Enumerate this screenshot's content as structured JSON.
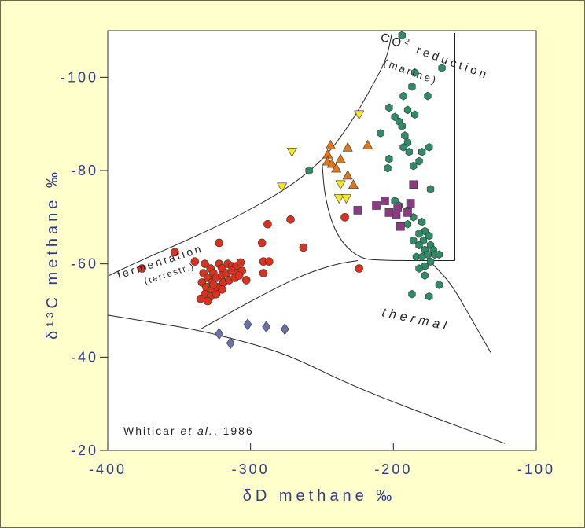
{
  "chart_data": {
    "type": "scatter",
    "title": "",
    "xlabel": "δD  methane ‰",
    "ylabel": "δ¹³C  methane ‰",
    "xlim": [
      -400,
      -100
    ],
    "ylim": [
      -110,
      -20
    ],
    "x_ticks": [
      "-400",
      "-300",
      "-200",
      "-100"
    ],
    "y_ticks": [
      "-100",
      "-80",
      "-60",
      "-40",
      "-20"
    ],
    "citation": {
      "author": "Whiticar ",
      "etal": "et al.",
      "year": ", 1986"
    },
    "region_labels": {
      "co2": "CO",
      "co2_sub": "2",
      "reduction": " reduction",
      "marine": "(marine)",
      "fermentation": "fermentation",
      "terrestr": "(terrestr.)",
      "thermal": "thermal"
    },
    "colors": {
      "red": "#d9321e",
      "green": "#2e8c68",
      "orange": "#e07818",
      "yellow": "#f5e82a",
      "purple": "#8c3a84",
      "blue": "#6a72a8",
      "axis_text": "#2e3a8c",
      "background": "#ffffcc"
    },
    "boundaries": [
      {
        "name": "fermentation-upper",
        "points": [
          [
            -399,
            -57.5
          ],
          [
            -375,
            -61
          ],
          [
            -345,
            -65
          ],
          [
            -310,
            -70
          ],
          [
            -275,
            -76
          ],
          [
            -250,
            -82
          ],
          [
            -230,
            -90
          ],
          [
            -215,
            -98
          ],
          [
            -208,
            -102
          ],
          [
            -204,
            -105
          ],
          [
            -201,
            -109.5
          ]
        ]
      },
      {
        "name": "co2-right",
        "points": [
          [
            -157,
            -109.5
          ],
          [
            -157,
            -60.7
          ]
        ]
      },
      {
        "name": "thermal-separator-inner",
        "points": [
          [
            -250,
            -82
          ],
          [
            -248,
            -74
          ],
          [
            -240,
            -66
          ],
          [
            -225,
            -61.3
          ],
          [
            -210,
            -60.7
          ],
          [
            -157,
            -60.7
          ]
        ]
      },
      {
        "name": "fermentation-lower",
        "points": [
          [
            -335,
            -46
          ],
          [
            -300,
            -52
          ],
          [
            -265,
            -57.5
          ],
          [
            -240,
            -60
          ],
          [
            -225,
            -60.7
          ]
        ]
      },
      {
        "name": "outer-lower",
        "points": [
          [
            -400,
            -49
          ],
          [
            -370,
            -47.5
          ],
          [
            -340,
            -46
          ],
          [
            -300,
            -43
          ],
          [
            -270,
            -40
          ],
          [
            -230,
            -34
          ],
          [
            -180,
            -28
          ],
          [
            -122,
            -21.5
          ]
        ]
      },
      {
        "name": "thermal-right",
        "points": [
          [
            -175,
            -60.7
          ],
          [
            -160,
            -56
          ],
          [
            -145,
            -48
          ],
          [
            -132,
            -41
          ]
        ]
      }
    ],
    "series": [
      {
        "name": "",
        "marker": "circle",
        "color": "red",
        "points": [
          [
            -376,
            -59
          ],
          [
            -353,
            -62.5
          ],
          [
            -339,
            -60.5
          ],
          [
            -322,
            -64.5
          ],
          [
            -288,
            -68.5
          ],
          [
            -272,
            -69.5
          ],
          [
            -263,
            -63.5
          ],
          [
            -292,
            -64.5
          ],
          [
            -291,
            -60.5
          ],
          [
            -287,
            -60.5
          ],
          [
            -291,
            -58
          ],
          [
            -234,
            -70
          ],
          [
            -224,
            -59
          ],
          [
            -332,
            -60
          ],
          [
            -328,
            -59
          ],
          [
            -326,
            -58
          ],
          [
            -322,
            -60
          ],
          [
            -320,
            -59
          ],
          [
            -316,
            -60
          ],
          [
            -313,
            -59.5
          ],
          [
            -310,
            -59.5
          ],
          [
            -307,
            -60.3
          ],
          [
            -333,
            -58
          ],
          [
            -330,
            -57
          ],
          [
            -327,
            -56
          ],
          [
            -324,
            -57
          ],
          [
            -320,
            -57.5
          ],
          [
            -317,
            -58
          ],
          [
            -313,
            -58.5
          ],
          [
            -309,
            -58
          ],
          [
            -306,
            -58.5
          ],
          [
            -334,
            -56
          ],
          [
            -331,
            -55
          ],
          [
            -327,
            -54.5
          ],
          [
            -323,
            -55
          ],
          [
            -319,
            -56
          ],
          [
            -315,
            -56.5
          ],
          [
            -311,
            -57
          ],
          [
            -308,
            -57.5
          ],
          [
            -303,
            -56.5
          ],
          [
            -332,
            -53.5
          ],
          [
            -328,
            -53
          ],
          [
            -324,
            -53.5
          ],
          [
            -320,
            -54.5
          ],
          [
            -335,
            -52.5
          ],
          [
            -330,
            -52
          ],
          [
            -326,
            -55.5
          ]
        ]
      },
      {
        "name": "",
        "marker": "circle",
        "color": "green",
        "points": [
          [
            -194,
            -109
          ],
          [
            -166,
            -102
          ],
          [
            -185,
            -101
          ],
          [
            -187,
            -98
          ],
          [
            -193,
            -96
          ],
          [
            -176,
            -96
          ],
          [
            -190,
            -93
          ],
          [
            -203,
            -93.5
          ],
          [
            -185,
            -92
          ],
          [
            -199,
            -91.5
          ],
          [
            -196,
            -90.5
          ],
          [
            -194,
            -89.5
          ],
          [
            -209,
            -88
          ],
          [
            -192,
            -87.5
          ],
          [
            -190,
            -86
          ],
          [
            -193,
            -85
          ],
          [
            -175,
            -85
          ],
          [
            -189,
            -84
          ],
          [
            -180,
            -84
          ],
          [
            -203,
            -82.5
          ],
          [
            -182,
            -82
          ],
          [
            -259,
            -80
          ],
          [
            -186,
            -81
          ],
          [
            -204,
            -80.5
          ],
          [
            -174,
            -76
          ],
          [
            -188,
            -73
          ],
          [
            -199,
            -73.5
          ],
          [
            -196,
            -72.5
          ],
          [
            -190,
            -71.5
          ],
          [
            -186,
            -70
          ],
          [
            -180,
            -69
          ],
          [
            -190,
            -68.5
          ],
          [
            -178,
            -67
          ],
          [
            -182,
            -66.5
          ],
          [
            -175,
            -66
          ],
          [
            -179,
            -65
          ],
          [
            -186,
            -65
          ],
          [
            -174,
            -64
          ],
          [
            -182,
            -64
          ],
          [
            -178,
            -63
          ],
          [
            -172,
            -63
          ],
          [
            -176,
            -62
          ],
          [
            -184,
            -61.5
          ],
          [
            -180,
            -61.5
          ],
          [
            -171,
            -62
          ],
          [
            -168,
            -62
          ],
          [
            -174,
            -60.5
          ],
          [
            -178,
            -59.5
          ],
          [
            -182,
            -59
          ],
          [
            -178,
            -57.5
          ],
          [
            -168,
            -55.5
          ],
          [
            -175,
            -53
          ],
          [
            -187,
            -53.5
          ]
        ]
      },
      {
        "name": "",
        "marker": "triangle-up",
        "color": "orange",
        "points": [
          [
            -244,
            -85.5
          ],
          [
            -232,
            -85
          ],
          [
            -218,
            -85.5
          ],
          [
            -237,
            -82.5
          ],
          [
            -246,
            -83.5
          ],
          [
            -246,
            -82
          ],
          [
            -243,
            -81.5
          ],
          [
            -240,
            -80.5
          ],
          [
            -232,
            -79
          ],
          [
            -228,
            -77
          ]
        ]
      },
      {
        "name": "",
        "marker": "triangle-down",
        "color": "yellow",
        "points": [
          [
            -224,
            -92
          ],
          [
            -271,
            -84
          ],
          [
            -278,
            -76.5
          ],
          [
            -237,
            -77
          ],
          [
            -238,
            -74
          ],
          [
            -233,
            -74
          ]
        ]
      },
      {
        "name": "",
        "marker": "square",
        "color": "purple",
        "points": [
          [
            -186,
            -77
          ],
          [
            -225,
            -71.5
          ],
          [
            -212,
            -72.5
          ],
          [
            -206,
            -73.5
          ],
          [
            -197,
            -72
          ],
          [
            -203,
            -71
          ],
          [
            -198,
            -70.5
          ],
          [
            -188,
            -73
          ],
          [
            -190,
            -71
          ],
          [
            -195,
            -68
          ]
        ]
      },
      {
        "name": "",
        "marker": "diamond",
        "color": "blue",
        "points": [
          [
            -322,
            -45
          ],
          [
            -314,
            -43
          ],
          [
            -302,
            -47
          ],
          [
            -289,
            -46.5
          ],
          [
            -276,
            -46
          ]
        ]
      }
    ]
  }
}
